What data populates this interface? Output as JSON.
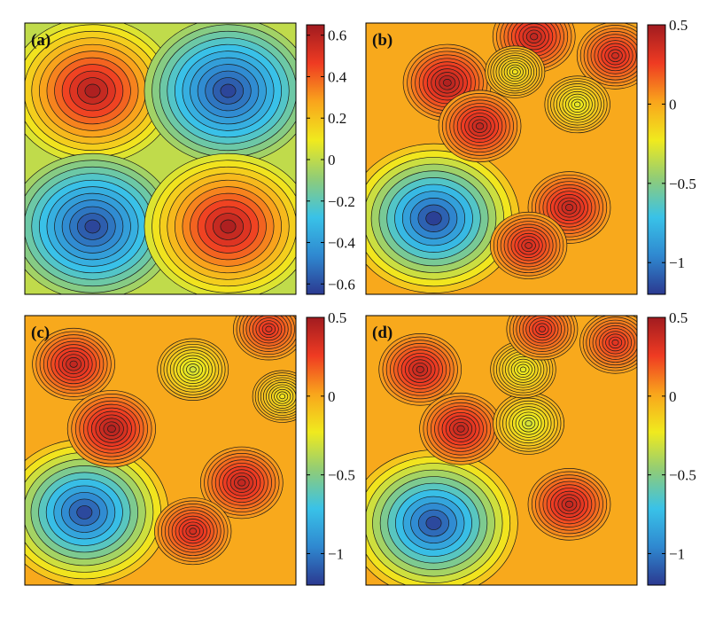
{
  "chart_data": [
    {
      "type": "heatmap",
      "panel_label": "(a)",
      "colormap": [
        "#2b3990",
        "#2f88d0",
        "#39c2e8",
        "#8fcc78",
        "#f0ea1e",
        "#f9a51c",
        "#ef3b22",
        "#a11b20"
      ],
      "color_range": [
        -0.65,
        0.65
      ],
      "colorbar_ticks": [
        0.6,
        0.4,
        0.2,
        0,
        -0.2,
        -0.4,
        -0.6
      ],
      "colorbar_tick_labels": [
        "0.6",
        "0.4",
        "0.2",
        "0",
        "−0.2",
        "−0.4",
        "−0.6"
      ],
      "features": [
        {
          "x": 0.25,
          "y": 0.25,
          "value": 0.62
        },
        {
          "x": 0.75,
          "y": 0.25,
          "value": -0.62
        },
        {
          "x": 0.25,
          "y": 0.75,
          "value": -0.62
        },
        {
          "x": 0.75,
          "y": 0.75,
          "value": 0.62
        }
      ]
    },
    {
      "type": "heatmap",
      "panel_label": "(b)",
      "colormap": [
        "#2b3990",
        "#2f88d0",
        "#39c2e8",
        "#8fcc78",
        "#f0ea1e",
        "#f9a51c",
        "#ef3b22",
        "#a11b20"
      ],
      "color_range": [
        -1.2,
        0.5
      ],
      "colorbar_ticks": [
        0.5,
        0,
        -0.5,
        -1
      ],
      "colorbar_tick_labels": [
        "0.5",
        "0",
        "−0.5",
        "−1"
      ],
      "features": [
        {
          "x": 0.25,
          "y": 0.72,
          "value": -1.18
        },
        {
          "x": 0.3,
          "y": 0.22,
          "value": 0.45
        },
        {
          "x": 0.42,
          "y": 0.38,
          "value": 0.4
        },
        {
          "x": 0.75,
          "y": 0.68,
          "value": 0.4
        },
        {
          "x": 0.6,
          "y": 0.82,
          "value": 0.35
        },
        {
          "x": 0.62,
          "y": 0.05,
          "value": 0.4
        },
        {
          "x": 0.92,
          "y": 0.12,
          "value": 0.35
        },
        {
          "x": 0.55,
          "y": 0.18,
          "value": -0.2
        },
        {
          "x": 0.78,
          "y": 0.3,
          "value": -0.25
        }
      ]
    },
    {
      "type": "heatmap",
      "panel_label": "(c)",
      "colormap": [
        "#2b3990",
        "#2f88d0",
        "#39c2e8",
        "#8fcc78",
        "#f0ea1e",
        "#f9a51c",
        "#ef3b22",
        "#a11b20"
      ],
      "color_range": [
        -1.2,
        0.5
      ],
      "colorbar_ticks": [
        0.5,
        0,
        -0.5,
        -1
      ],
      "colorbar_tick_labels": [
        "0.5",
        "0",
        "−0.5",
        "−1"
      ],
      "features": [
        {
          "x": 0.22,
          "y": 0.73,
          "value": -1.15
        },
        {
          "x": 0.18,
          "y": 0.18,
          "value": 0.4
        },
        {
          "x": 0.32,
          "y": 0.42,
          "value": 0.45
        },
        {
          "x": 0.8,
          "y": 0.62,
          "value": 0.4
        },
        {
          "x": 0.62,
          "y": 0.8,
          "value": 0.35
        },
        {
          "x": 0.62,
          "y": 0.2,
          "value": -0.3
        },
        {
          "x": 0.9,
          "y": 0.05,
          "value": 0.3
        },
        {
          "x": 0.95,
          "y": 0.3,
          "value": -0.2
        }
      ]
    },
    {
      "type": "heatmap",
      "panel_label": "(d)",
      "colormap": [
        "#2b3990",
        "#2f88d0",
        "#39c2e8",
        "#8fcc78",
        "#f0ea1e",
        "#f9a51c",
        "#ef3b22",
        "#a11b20"
      ],
      "color_range": [
        -1.2,
        0.5
      ],
      "colorbar_ticks": [
        0.5,
        0,
        -0.5,
        -1
      ],
      "colorbar_tick_labels": [
        "0.5",
        "0",
        "−0.5",
        "−1"
      ],
      "features": [
        {
          "x": 0.25,
          "y": 0.77,
          "value": -1.15
        },
        {
          "x": 0.2,
          "y": 0.2,
          "value": 0.4
        },
        {
          "x": 0.35,
          "y": 0.42,
          "value": 0.4
        },
        {
          "x": 0.75,
          "y": 0.7,
          "value": 0.4
        },
        {
          "x": 0.6,
          "y": 0.4,
          "value": -0.3
        },
        {
          "x": 0.58,
          "y": 0.2,
          "value": -0.25
        },
        {
          "x": 0.92,
          "y": 0.1,
          "value": 0.3
        },
        {
          "x": 0.65,
          "y": 0.05,
          "value": 0.3
        }
      ]
    }
  ]
}
